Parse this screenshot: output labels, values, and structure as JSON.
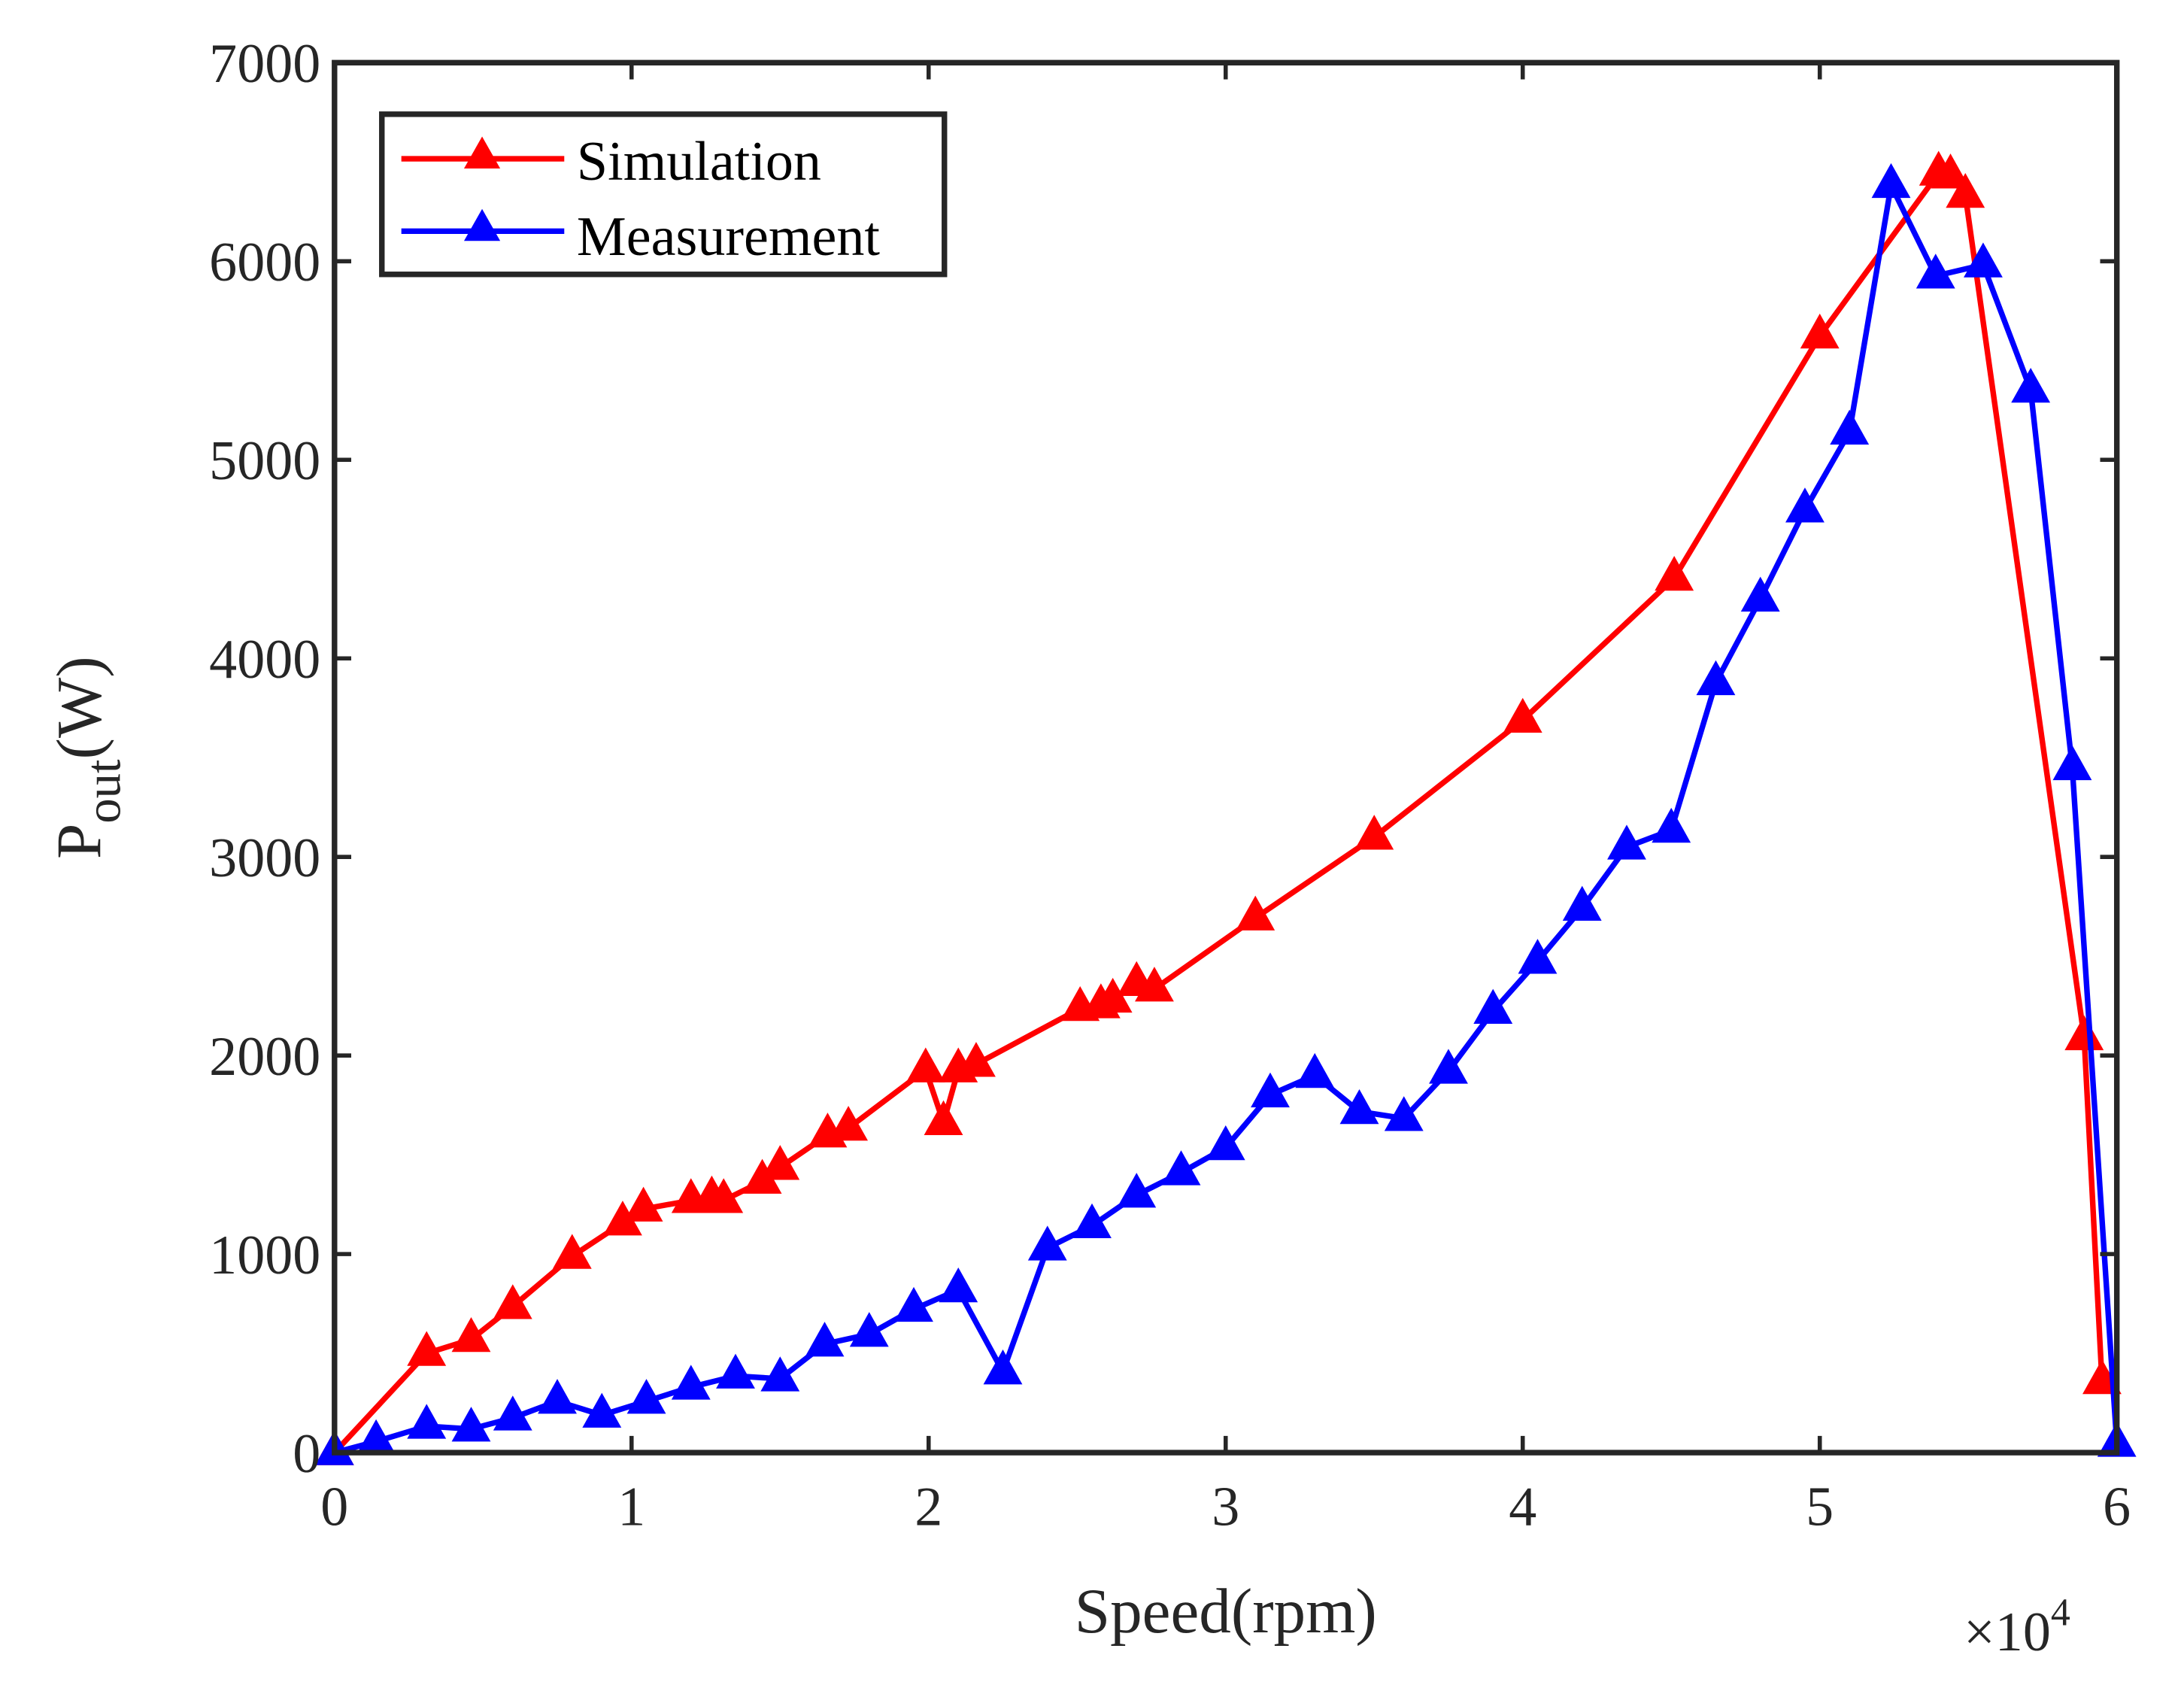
{
  "chart_data": {
    "type": "line",
    "title": "",
    "xlabel": "Speed(rpm)",
    "ylabel_main": "P",
    "ylabel_sub": "out",
    "ylabel_unit": "(W)",
    "x_multiplier_base": "×10",
    "x_multiplier_exp": "4",
    "xlim": [
      0,
      6
    ],
    "ylim": [
      0,
      7000
    ],
    "xticks": [
      0,
      1,
      2,
      3,
      4,
      5,
      6
    ],
    "yticks": [
      0,
      1000,
      2000,
      3000,
      4000,
      5000,
      6000,
      7000
    ],
    "grid": false,
    "legend_position": "top-left",
    "series": [
      {
        "name": "Simulation",
        "color": "#ff0000",
        "marker": "triangle",
        "x": [
          0,
          0.31,
          0.46,
          0.6,
          0.8,
          0.97,
          1.04,
          1.2,
          1.27,
          1.31,
          1.44,
          1.5,
          1.66,
          1.73,
          1.99,
          2.05,
          2.1,
          2.16,
          2.51,
          2.58,
          2.62,
          2.7,
          2.76,
          3.1,
          3.5,
          4.0,
          4.51,
          5.0,
          5.4,
          5.44,
          5.49,
          5.89,
          5.95
        ],
        "y": [
          0,
          500,
          570,
          736,
          989,
          1157,
          1227,
          1270,
          1283,
          1270,
          1367,
          1437,
          1600,
          1634,
          1928,
          1662,
          1928,
          1956,
          2237,
          2251,
          2279,
          2363,
          2335,
          2693,
          3100,
          3689,
          4404,
          5624,
          6444,
          6430,
          6332,
          2090,
          358
        ]
      },
      {
        "name": "Measurement",
        "color": "#0000ff",
        "marker": "triangle",
        "x": [
          0,
          0.14,
          0.31,
          0.46,
          0.6,
          0.75,
          0.9,
          1.05,
          1.2,
          1.35,
          1.5,
          1.65,
          1.8,
          1.95,
          2.1,
          2.25,
          2.4,
          2.55,
          2.7,
          2.85,
          3.0,
          3.15,
          3.3,
          3.45,
          3.6,
          3.75,
          3.9,
          4.05,
          4.2,
          4.35,
          4.5,
          4.65,
          4.8,
          4.95,
          5.1,
          5.24,
          5.39,
          5.55,
          5.71,
          5.85,
          6.0
        ],
        "y": [
          0,
          56,
          133,
          119,
          175,
          259,
          189,
          259,
          330,
          386,
          372,
          547,
          596,
          722,
          820,
          407,
          1031,
          1143,
          1297,
          1410,
          1536,
          1802,
          1900,
          1718,
          1683,
          1921,
          2223,
          2475,
          2742,
          3050,
          3135,
          3878,
          4299,
          4748,
          5140,
          6382,
          5926,
          5982,
          5351,
          3450,
          42
        ]
      }
    ]
  }
}
